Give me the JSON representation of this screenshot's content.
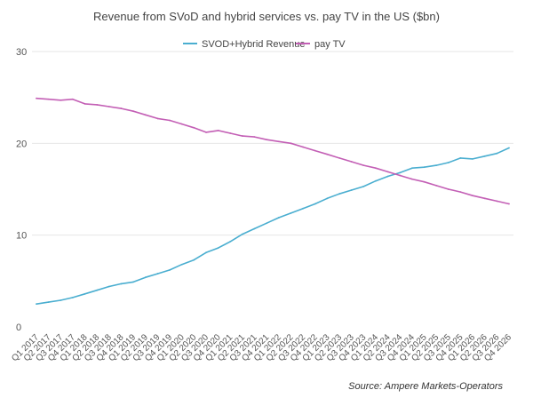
{
  "chart_data": {
    "type": "line",
    "title": "Revenue from SVoD and hybrid services vs. pay TV in the US ($bn)",
    "xlabel": "",
    "ylabel": "",
    "ylim": [
      0,
      30
    ],
    "yticks": [
      0,
      10,
      20,
      30
    ],
    "grid": true,
    "legend_position": "top-center",
    "source": "Source: Ampere Markets-Operators",
    "categories": [
      "Q1 2017",
      "Q2 2017",
      "Q3 2017",
      "Q4 2017",
      "Q1 2018",
      "Q2 2018",
      "Q3 2018",
      "Q4 2018",
      "Q1 2019",
      "Q2 2019",
      "Q3 2019",
      "Q4 2019",
      "Q1 2020",
      "Q2 2020",
      "Q3 2020",
      "Q4 2020",
      "Q1 2021",
      "Q2 2021",
      "Q3 2021",
      "Q4 2021",
      "Q1 2022",
      "Q2 2022",
      "Q3 2022",
      "Q4 2022",
      "Q1 2023",
      "Q2 2023",
      "Q3 2023",
      "Q4 2023",
      "Q1 2024",
      "Q2 2024",
      "Q3 2024",
      "Q4 2024",
      "Q1 2025",
      "Q2 2025",
      "Q3 2025",
      "Q4 2025",
      "Q1 2026",
      "Q2 2026",
      "Q3 2026",
      "Q4 2026"
    ],
    "series": [
      {
        "name": "SVOD+Hybrid Revenue",
        "color": "#4aaed0",
        "values": [
          2.5,
          2.7,
          2.9,
          3.2,
          3.6,
          4.0,
          4.4,
          4.7,
          4.9,
          5.4,
          5.8,
          6.2,
          6.8,
          7.3,
          8.1,
          8.6,
          9.3,
          10.1,
          10.7,
          11.3,
          11.9,
          12.4,
          12.9,
          13.4,
          14.0,
          14.5,
          14.9,
          15.3,
          15.9,
          16.4,
          16.8,
          17.3,
          17.4,
          17.6,
          17.9,
          18.4,
          18.3,
          18.6,
          18.9,
          19.5
        ]
      },
      {
        "name": "pay TV",
        "color": "#c35fb5",
        "values": [
          24.9,
          24.8,
          24.7,
          24.8,
          24.3,
          24.2,
          24.0,
          23.8,
          23.5,
          23.1,
          22.7,
          22.5,
          22.1,
          21.7,
          21.2,
          21.4,
          21.1,
          20.8,
          20.7,
          20.4,
          20.2,
          20.0,
          19.6,
          19.2,
          18.8,
          18.4,
          18.0,
          17.6,
          17.3,
          16.9,
          16.5,
          16.1,
          15.8,
          15.4,
          15.0,
          14.7,
          14.3,
          14.0,
          13.7,
          13.4
        ]
      }
    ]
  }
}
